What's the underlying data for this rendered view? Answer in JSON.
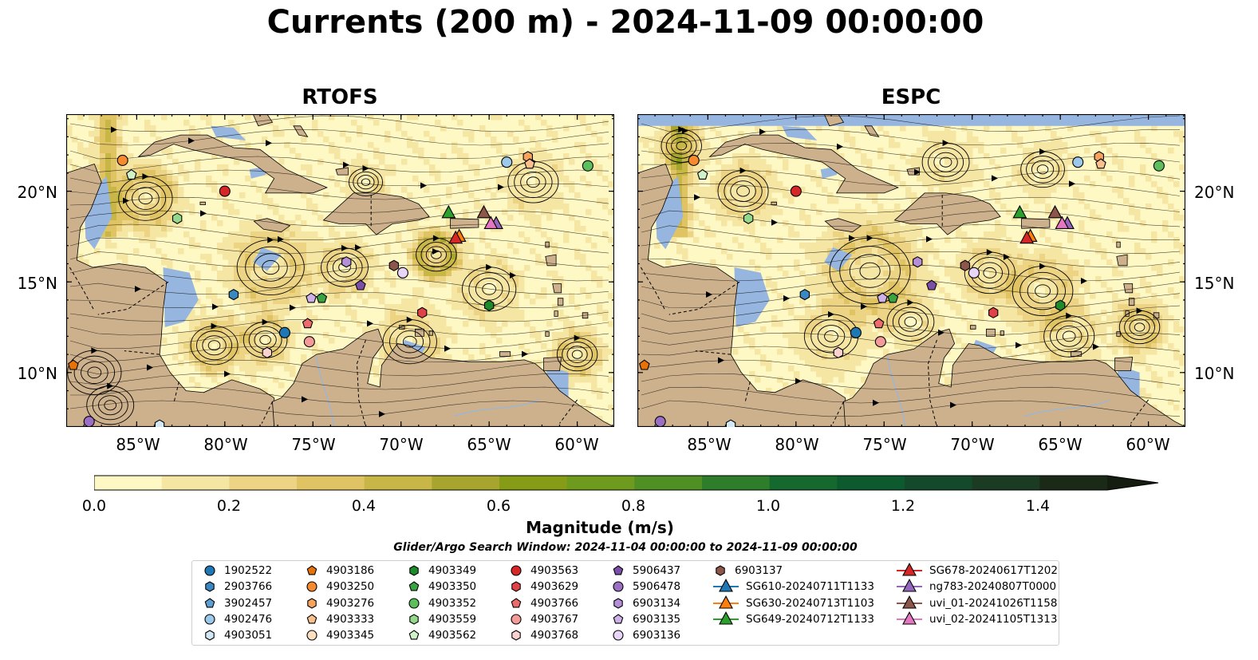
{
  "title": "Currents (200 m) - 2024-11-09 00:00:00",
  "panels": [
    {
      "title": "RTOFS"
    },
    {
      "title": "ESPC"
    }
  ],
  "lon_labels": [
    "85°W",
    "80°W",
    "75°W",
    "70°W",
    "65°W",
    "60°W"
  ],
  "lat_labels": [
    "20°N",
    "15°N",
    "10°N"
  ],
  "colors": {
    "ocean": "#96b6df",
    "land": "#cdb18c",
    "colormap": [
      "#fef8c4",
      "#f6e6a4",
      "#ecd484",
      "#e0c463",
      "#c8b647",
      "#a8a52e",
      "#879c16",
      "#6e9a1e",
      "#4f8f23",
      "#2e7d2a",
      "#16692e",
      "#0c5a2e",
      "#15492b",
      "#1b3b23",
      "#1a2a17",
      "#151c10"
    ]
  },
  "colorbar": {
    "ticks": [
      "0.0",
      "0.2",
      "0.4",
      "0.6",
      "0.8",
      "1.0",
      "1.2",
      "1.4"
    ],
    "label": "Magnitude (m/s)",
    "range": [
      0.0,
      1.6
    ]
  },
  "search_window": "Glider/Argo Search Window: 2024-11-04 00:00:00 to 2024-11-09 00:00:00",
  "legend": [
    {
      "label": "1902522",
      "marker": "circle",
      "color": "#1f77b4"
    },
    {
      "label": "2903766",
      "marker": "hexagon",
      "color": "#3a88c2"
    },
    {
      "label": "3902457",
      "marker": "pentagon",
      "color": "#5d9fd3"
    },
    {
      "label": "4902476",
      "marker": "circle",
      "color": "#9cc9ea"
    },
    {
      "label": "4903051",
      "marker": "hexagon",
      "color": "#d2e8f7"
    },
    {
      "label": "4903186",
      "marker": "pentagon",
      "color": "#e67208"
    },
    {
      "label": "4903250",
      "marker": "circle",
      "color": "#f58b2e"
    },
    {
      "label": "4903276",
      "marker": "hexagon",
      "color": "#f7a35e"
    },
    {
      "label": "4903333",
      "marker": "pentagon",
      "color": "#f9c08e"
    },
    {
      "label": "4903345",
      "marker": "circle",
      "color": "#fcdfbe"
    },
    {
      "label": "4903349",
      "marker": "hexagon",
      "color": "#1f8a2a"
    },
    {
      "label": "4903350",
      "marker": "pentagon",
      "color": "#3aa342"
    },
    {
      "label": "4903352",
      "marker": "circle",
      "color": "#5cbf5c"
    },
    {
      "label": "4903559",
      "marker": "hexagon",
      "color": "#94d98b"
    },
    {
      "label": "4903562",
      "marker": "pentagon",
      "color": "#d0f2c8"
    },
    {
      "label": "4903563",
      "marker": "circle",
      "color": "#d62728"
    },
    {
      "label": "4903629",
      "marker": "hexagon",
      "color": "#e04347"
    },
    {
      "label": "4903766",
      "marker": "pentagon",
      "color": "#ec6c6d"
    },
    {
      "label": "4903767",
      "marker": "circle",
      "color": "#f29b98"
    },
    {
      "label": "4903768",
      "marker": "hexagon",
      "color": "#fad2cf"
    },
    {
      "label": "5906437",
      "marker": "pentagon",
      "color": "#7b4fa8"
    },
    {
      "label": "5906478",
      "marker": "circle",
      "color": "#9b6fc4"
    },
    {
      "label": "6903134",
      "marker": "hexagon",
      "color": "#b48ed6"
    },
    {
      "label": "6903135",
      "marker": "pentagon",
      "color": "#cfb1ea"
    },
    {
      "label": "6903136",
      "marker": "circle",
      "color": "#e9d5f8"
    },
    {
      "label": "6903137",
      "marker": "hexagon",
      "color": "#8c564b"
    },
    {
      "label": "SG610-20240711T1133",
      "marker": "triangle",
      "color": "#1f77b4"
    },
    {
      "label": "SG630-20240713T1103",
      "marker": "triangle",
      "color": "#ff7f0e"
    },
    {
      "label": "SG649-20240712T1133",
      "marker": "triangle",
      "color": "#2ca02c"
    },
    {
      "label": "SG678-20240617T1202",
      "marker": "triangle",
      "color": "#d62728"
    },
    {
      "label": "ng783-20240807T0000",
      "marker": "triangle",
      "color": "#9467bd"
    },
    {
      "label": "uvi_01-20241026T1158",
      "marker": "triangle",
      "color": "#8c564b"
    },
    {
      "label": "uvi_02-20241105T1313",
      "marker": "triangle",
      "color": "#e377c2"
    }
  ],
  "argo_floats": [
    {
      "id": "1902522",
      "lon": -76.6,
      "lat": 12.2
    },
    {
      "id": "2903766",
      "lon": -79.5,
      "lat": 14.3
    },
    {
      "id": "4902476",
      "lon": -64.0,
      "lat": 21.6
    },
    {
      "id": "4903051",
      "lon": -83.7,
      "lat": 7.1
    },
    {
      "id": "4903186",
      "lon": -88.6,
      "lat": 10.4
    },
    {
      "id": "4903250",
      "lon": -85.8,
      "lat": 21.7
    },
    {
      "id": "4903276",
      "lon": -62.8,
      "lat": 21.9
    },
    {
      "id": "4903333",
      "lon": -62.7,
      "lat": 21.5
    },
    {
      "id": "4903349",
      "lon": -65.0,
      "lat": 13.7
    },
    {
      "id": "4903350",
      "lon": -74.5,
      "lat": 14.1
    },
    {
      "id": "4903352",
      "lon": -59.4,
      "lat": 21.4
    },
    {
      "id": "4903559",
      "lon": -82.7,
      "lat": 18.5
    },
    {
      "id": "4903562",
      "lon": -85.3,
      "lat": 20.9
    },
    {
      "id": "4903563",
      "lon": -80.0,
      "lat": 20.0
    },
    {
      "id": "4903629",
      "lon": -68.8,
      "lat": 13.3
    },
    {
      "id": "4903766",
      "lon": -75.3,
      "lat": 12.7
    },
    {
      "id": "4903767",
      "lon": -75.2,
      "lat": 11.7
    },
    {
      "id": "4903768",
      "lon": -77.6,
      "lat": 11.1
    },
    {
      "id": "5906437",
      "lon": -72.3,
      "lat": 14.8
    },
    {
      "id": "5906478",
      "lon": -87.7,
      "lat": 7.3
    },
    {
      "id": "6903134",
      "lon": -73.1,
      "lat": 16.1
    },
    {
      "id": "6903135",
      "lon": -75.1,
      "lat": 14.1
    },
    {
      "id": "6903136",
      "lon": -69.9,
      "lat": 15.5
    },
    {
      "id": "6903137",
      "lon": -70.4,
      "lat": 15.9
    }
  ],
  "glider_tracks": [
    {
      "id": "SG630-20240713T1103",
      "lon": -66.7,
      "lat": 17.5
    },
    {
      "id": "SG649-20240712T1133",
      "lon": -67.3,
      "lat": 18.8
    },
    {
      "id": "SG678-20240617T1202",
      "lon": -66.9,
      "lat": 17.4
    },
    {
      "id": "ng783-20240807T0000",
      "lon": -64.6,
      "lat": 18.2
    },
    {
      "id": "uvi_01-20241026T1158",
      "lon": -65.3,
      "lat": 18.8
    },
    {
      "id": "uvi_02-20241105T1313",
      "lon": -64.9,
      "lat": 18.2
    }
  ]
}
